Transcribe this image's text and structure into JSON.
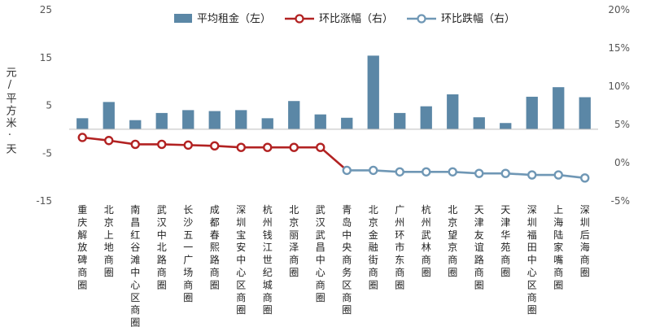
{
  "chart_data": {
    "type": "bar+line",
    "categories": [
      "重庆解放碑商圈",
      "北京上地商圈",
      "南昌红谷滩中心区商圈",
      "武汉中北路商圈",
      "长沙五一广场商圈",
      "成都春熙路商圈",
      "深圳宝安中心区商圈",
      "杭州钱江世纪城商圈",
      "北京丽泽商圈",
      "武汉武昌中心商圈",
      "青岛中央商务区商圈",
      "北京金融街商圈",
      "广州环市东商圈",
      "杭州武林商圈",
      "北京望京商圈",
      "天津友谊路商圈",
      "天津华苑商圈",
      "深圳福田中心区商圈",
      "上海陆家嘴商圈",
      "深圳后海商圈"
    ],
    "ylabel": "元/平方米·天",
    "y_left": {
      "min": -15,
      "max": 25,
      "ticks": [
        "-15",
        "-5",
        "5",
        "15",
        "25"
      ]
    },
    "y_right": {
      "min": -5,
      "max": 20,
      "ticks": [
        "-5%",
        "0%",
        "5%",
        "10%",
        "15%",
        "20%"
      ]
    },
    "legend_position": "top",
    "legend": [
      "平均租金（左）",
      "环比涨幅（右）",
      "环比跌幅（右）"
    ],
    "series": [
      {
        "name": "平均租金（左）",
        "type": "bar",
        "axis": "left",
        "color": "#5b87a6",
        "values": [
          2.3,
          5.7,
          1.9,
          3.4,
          4.0,
          3.8,
          4.0,
          2.3,
          5.9,
          3.1,
          2.4,
          15.4,
          3.4,
          4.8,
          7.3,
          2.5,
          1.3,
          6.8,
          8.8,
          6.7
        ]
      },
      {
        "name": "环比涨幅（右）",
        "type": "line",
        "axis": "right",
        "color": "#b22222",
        "values": [
          3.3,
          2.9,
          2.4,
          2.4,
          2.3,
          2.2,
          2.0,
          2.0,
          2.0,
          2.0,
          null,
          null,
          null,
          null,
          null,
          null,
          null,
          null,
          null,
          null
        ]
      },
      {
        "name": "环比跌幅（右）",
        "type": "line",
        "axis": "right",
        "color": "#6f97b5",
        "values": [
          null,
          null,
          null,
          null,
          null,
          null,
          null,
          null,
          null,
          null,
          -1.0,
          -1.0,
          -1.2,
          -1.2,
          -1.2,
          -1.4,
          -1.4,
          -1.6,
          -1.6,
          -2.0
        ]
      }
    ],
    "connector": {
      "color": "#b22222",
      "from_series": 1,
      "to_series": 2
    }
  }
}
